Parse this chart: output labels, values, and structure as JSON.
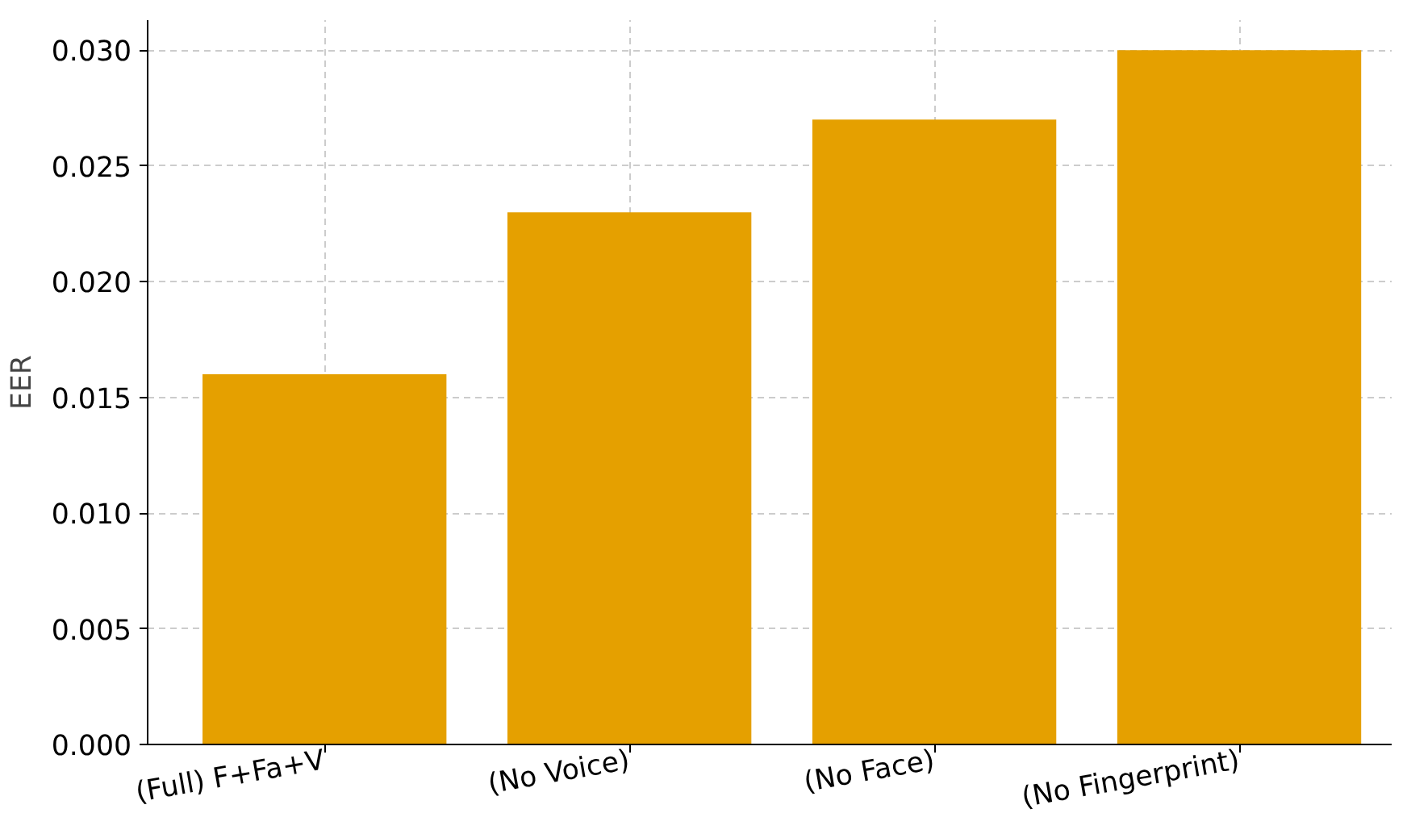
{
  "chart_data": {
    "type": "bar",
    "ylabel": "EER",
    "categories": [
      "(Full) F+Fa+V",
      "(No Voice)",
      "(No Face)",
      "(No Fingerprint)"
    ],
    "values": [
      0.016,
      0.023,
      0.027,
      0.03
    ],
    "color": "#e5a000",
    "ylim": [
      0,
      0.0313
    ],
    "yticks": [
      {
        "value": 0,
        "label": "0.000"
      },
      {
        "value": 0.005,
        "label": "0.005"
      },
      {
        "value": 0.01,
        "label": "0.010"
      },
      {
        "value": 0.015,
        "label": "0.015"
      },
      {
        "value": 0.02,
        "label": "0.020"
      },
      {
        "value": 0.025,
        "label": "0.025"
      },
      {
        "value": 0.03,
        "label": "0.030"
      }
    ],
    "grid": true
  }
}
